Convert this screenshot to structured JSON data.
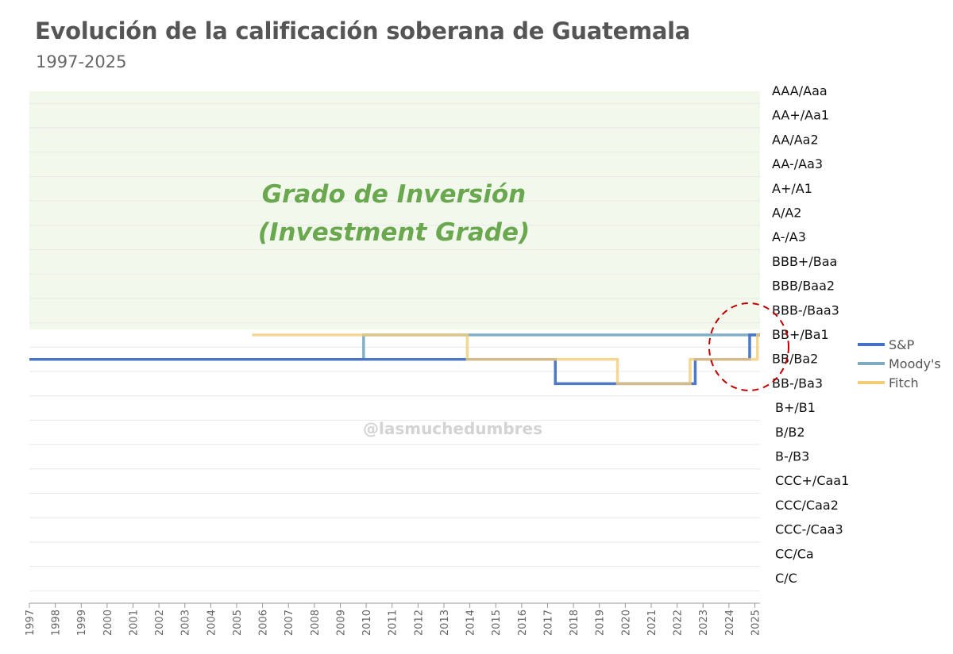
{
  "header": {
    "title": "Evolución de la calificación soberana de Guatemala",
    "subtitle": "1997-2025"
  },
  "annotations": {
    "investment_grade_line1": "Grado de Inversión",
    "investment_grade_line2": "(Investment Grade)",
    "watermark": "@lasmuchedumbres"
  },
  "colors": {
    "sp": "#4472c4",
    "moodys": "#7bacc0",
    "fitch": "#f4cc78",
    "investment_grade_band": "#f2f8ec",
    "investment_grade_text": "#6aa84f",
    "highlight_circle": "#c00000"
  },
  "chart_data": {
    "type": "line",
    "step": true,
    "title": "Evolución de la calificación soberana de Guatemala",
    "subtitle": "1997-2025",
    "xlim": [
      1997,
      2025.2
    ],
    "x_ticks": [
      "1997",
      "1998",
      "1999",
      "2000",
      "2001",
      "2002",
      "2003",
      "2004",
      "2005",
      "2006",
      "2007",
      "2008",
      "2009",
      "2010",
      "2011",
      "2012",
      "2013",
      "2014",
      "2015",
      "2016",
      "2017",
      "2018",
      "2019",
      "2020",
      "2021",
      "2022",
      "2023",
      "2024",
      "2025"
    ],
    "y_categories": [
      "AAA/Aaa",
      "AA+/Aa1",
      "AA/Aa2",
      "AA-/Aa3",
      "A+/A1",
      "A/A2",
      "A-/A3",
      "BBB+/Baa",
      "BBB/Baa2",
      "BBB-/Baa3",
      "BB+/Ba1",
      "BB/Ba2",
      "BB-/Ba3",
      "B+/B1",
      "B/B2",
      "B-/B3",
      "CCC+/Caa1",
      "CCC/Caa2",
      "CCC-/Caa3",
      "CC/Ca",
      "C/C"
    ],
    "investment_grade_threshold": "BBB-/Baa3",
    "legend": [
      "S&P",
      "Moody's",
      "Fitch"
    ],
    "legend_position": "right",
    "series": [
      {
        "name": "S&P",
        "x": [
          1997,
          2014,
          2017.3,
          2022.7,
          2024.8,
          2025.2
        ],
        "y": [
          "BB/Ba2",
          "BB/Ba2",
          "BB-/Ba3",
          "BB/Ba2",
          "BB+/Ba1",
          "BB+/Ba1"
        ]
      },
      {
        "name": "Moody's",
        "x": [
          1997,
          2009.9,
          2025.2
        ],
        "y": [
          "BB/Ba2",
          "BB+/Ba1",
          "BB+/Ba1"
        ]
      },
      {
        "name": "Fitch",
        "x": [
          2005.6,
          2013.9,
          2019.7,
          2022.5,
          2025.1,
          2025.2
        ],
        "y": [
          "BB+/Ba1",
          "BB/Ba2",
          "BB-/Ba3",
          "BB/Ba2",
          "BB+/Ba1",
          "BB+/Ba1"
        ]
      }
    ]
  }
}
